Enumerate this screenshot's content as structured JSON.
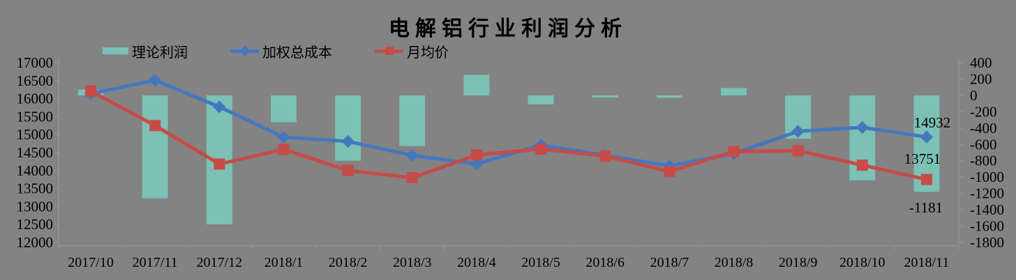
{
  "title": "电解铝行业利润分析",
  "colors": {
    "background": "#838383",
    "bar": "#7BC1B5",
    "cost_line": "#4577BE",
    "price_line": "#C74B47",
    "axis": "#909090",
    "text": "#000000"
  },
  "legend": {
    "profit_label": "理论利润",
    "cost_label": "加权总成本",
    "price_label": "月均价"
  },
  "chart_data": {
    "type": "bar",
    "subtype": "combo-bar-line",
    "title": "电解铝行业利润分析",
    "grid": false,
    "legend_position": "top",
    "categories": [
      "2017/10",
      "2017/11",
      "2017/12",
      "2018/1",
      "2018/2",
      "2018/3",
      "2018/4",
      "2018/5",
      "2018/6",
      "2018/7",
      "2018/8",
      "2018/9",
      "2018/10",
      "2018/11"
    ],
    "series": [
      {
        "name": "理论利润",
        "type": "bar",
        "axis": "right",
        "color": "#7BC1B5",
        "values": [
          70,
          -1260,
          -1580,
          -330,
          -800,
          -620,
          250,
          -110,
          -20,
          -30,
          90,
          -530,
          -1040,
          -1181
        ]
      },
      {
        "name": "加权总成本",
        "type": "line",
        "marker": "diamond",
        "axis": "left",
        "color": "#4577BE",
        "values": [
          16140,
          16510,
          15770,
          14930,
          14810,
          14420,
          14180,
          14710,
          14420,
          14130,
          14470,
          15090,
          15200,
          14932
        ]
      },
      {
        "name": "月均价",
        "type": "line",
        "marker": "square",
        "axis": "left",
        "color": "#C74B47",
        "values": [
          16210,
          15250,
          14180,
          14590,
          14000,
          13800,
          14430,
          14600,
          14400,
          13970,
          14530,
          14550,
          14150,
          13751
        ]
      }
    ],
    "left_axis": {
      "min": 12000,
      "max": 17000,
      "step": 500,
      "ticks": [
        17000,
        16500,
        16000,
        15500,
        15000,
        14500,
        14000,
        13500,
        13000,
        12500,
        12000
      ]
    },
    "right_axis": {
      "min": -1800,
      "max": 400,
      "step": 200,
      "ticks": [
        400,
        200,
        0,
        -200,
        -400,
        -600,
        -800,
        -1000,
        -1200,
        -1400,
        -1600,
        -1800
      ]
    },
    "annotations": [
      {
        "text": "14932",
        "series": "加权总成本",
        "x": 1336,
        "y": 176
      },
      {
        "text": "13751",
        "series": "月均价",
        "x": 1322,
        "y": 228
      },
      {
        "text": "-1181",
        "series": "理论利润",
        "x": 1327,
        "y": 298
      }
    ]
  }
}
